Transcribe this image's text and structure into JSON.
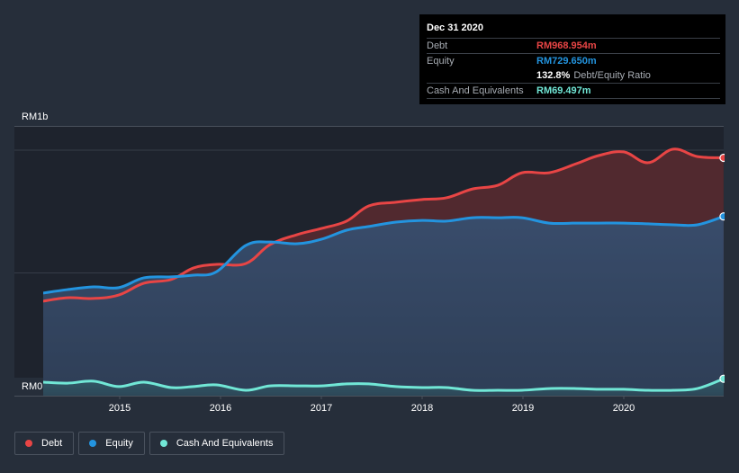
{
  "colors": {
    "debt": "#e84545",
    "equity": "#2394df",
    "cash": "#71e7d6",
    "background": "#262e3a",
    "plot_bg": "#1e232d"
  },
  "tooltip": {
    "title": "Dec 31 2020",
    "rows": [
      {
        "label": "Debt",
        "value": "RM968.954m"
      },
      {
        "label": "Equity",
        "value": "RM729.650m"
      },
      {
        "label": "",
        "value": "132.8%",
        "suffix": "Debt/Equity Ratio"
      },
      {
        "label": "Cash And Equivalents",
        "value": "RM69.497m"
      }
    ]
  },
  "legend": [
    {
      "label": "Debt",
      "key": "debt"
    },
    {
      "label": "Equity",
      "key": "equity"
    },
    {
      "label": "Cash And Equivalents",
      "key": "cash"
    }
  ],
  "chart_data": {
    "type": "area",
    "title": "",
    "xlabel": "",
    "ylabel": "",
    "y_unit": "RM millions",
    "ylim": [
      0,
      1100
    ],
    "xlim": [
      2014.0,
      2021.0
    ],
    "y_ticks": [
      {
        "value": 0,
        "label": "RM0"
      },
      {
        "value": 1000,
        "label": "RM1b"
      }
    ],
    "gridlines": [
      500,
      1000
    ],
    "x_ticks": [
      {
        "value": 2015,
        "label": "2015"
      },
      {
        "value": 2016,
        "label": "2016"
      },
      {
        "value": 2017,
        "label": "2017"
      },
      {
        "value": 2018,
        "label": "2018"
      },
      {
        "value": 2019,
        "label": "2019"
      },
      {
        "value": 2020,
        "label": "2020"
      }
    ],
    "x": [
      2014.24,
      2014.48,
      2014.74,
      2014.99,
      2015.24,
      2015.51,
      2015.73,
      2015.96,
      2016.25,
      2016.49,
      2016.76,
      2017.0,
      2017.25,
      2017.47,
      2017.74,
      2018.0,
      2018.24,
      2018.5,
      2018.75,
      2018.99,
      2019.26,
      2019.53,
      2019.75,
      2020.0,
      2020.24,
      2020.49,
      2020.73,
      2020.99
    ],
    "series": [
      {
        "name": "Debt",
        "key": "debt",
        "values": [
          385,
          399,
          396,
          410,
          458,
          473,
          520,
          535,
          538,
          615,
          656,
          681,
          711,
          773,
          788,
          799,
          806,
          842,
          857,
          908,
          908,
          945,
          978,
          993,
          949,
          1004,
          974,
          969
        ]
      },
      {
        "name": "Equity",
        "key": "equity",
        "values": [
          418,
          432,
          443,
          440,
          480,
          484,
          491,
          505,
          612,
          626,
          619,
          637,
          674,
          689,
          707,
          714,
          711,
          725,
          725,
          725,
          703,
          703,
          703,
          703,
          700,
          696,
          696,
          730
        ]
      },
      {
        "name": "Cash And Equivalents",
        "key": "cash",
        "values": [
          55,
          51,
          59,
          37,
          55,
          33,
          37,
          44,
          22,
          40,
          40,
          40,
          48,
          48,
          37,
          33,
          33,
          22,
          22,
          22,
          29,
          29,
          26,
          26,
          22,
          22,
          29,
          69
        ]
      }
    ],
    "highlight_date": "Dec 31 2020",
    "legend_position": "bottom-left"
  }
}
